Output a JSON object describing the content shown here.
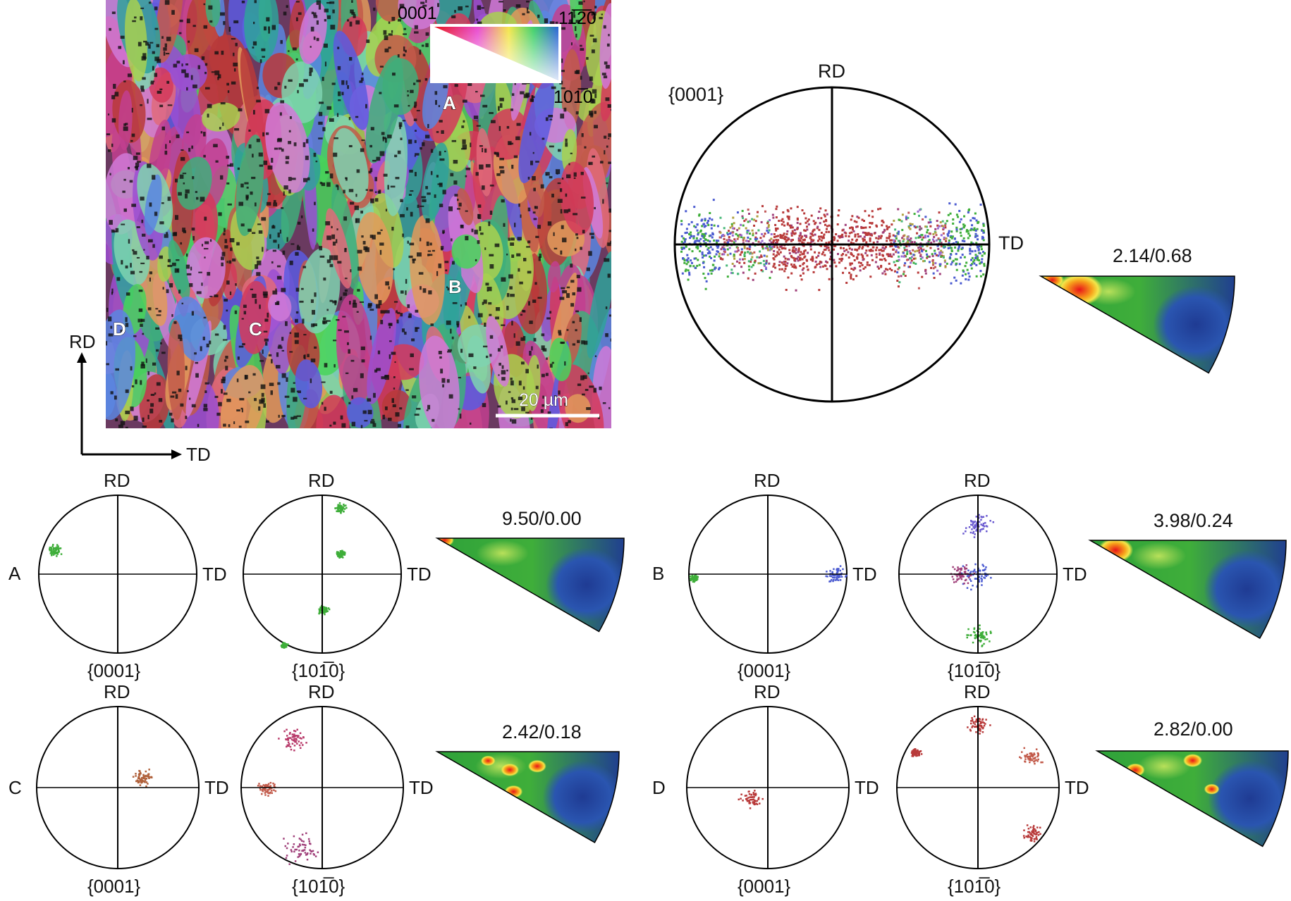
{
  "ebsd_map": {
    "legend": {
      "corner_top_left": "0001",
      "corner_top_right": "11̅2̅0",
      "corner_bottom_right": "101̅0"
    },
    "grain_labels": [
      "A",
      "B",
      "C",
      "D"
    ],
    "scale_bar": "20 µm"
  },
  "axes": {
    "rd": "RD",
    "td": "TD"
  },
  "main_pole_figure": {
    "plane": "{0001}",
    "rd": "RD",
    "td": "TD"
  },
  "main_ipf": {
    "max_min": "2.14/0.68"
  },
  "grains": [
    {
      "id": "A",
      "pf1_plane": "{0001}",
      "pf2_plane": "{101̅0}",
      "rd": "RD",
      "td": "TD",
      "ipf_max_min": "9.50/0.00"
    },
    {
      "id": "B",
      "pf1_plane": "{0001}",
      "pf2_plane": "{101̅0}",
      "rd": "RD",
      "td": "TD",
      "ipf_max_min": "3.98/0.24"
    },
    {
      "id": "C",
      "pf1_plane": "{0001}",
      "pf2_plane": "{101̅0}",
      "rd": "RD",
      "td": "TD",
      "ipf_max_min": "2.42/0.18"
    },
    {
      "id": "D",
      "pf1_plane": "{0001}",
      "pf2_plane": "{101̅0}",
      "rd": "RD",
      "td": "TD",
      "ipf_max_min": "2.82/0.00"
    }
  ],
  "colors": {
    "ipf_high": "#e8141a",
    "ipf_mid": "#3fae3a",
    "ipf_low": "#1f3b93"
  }
}
